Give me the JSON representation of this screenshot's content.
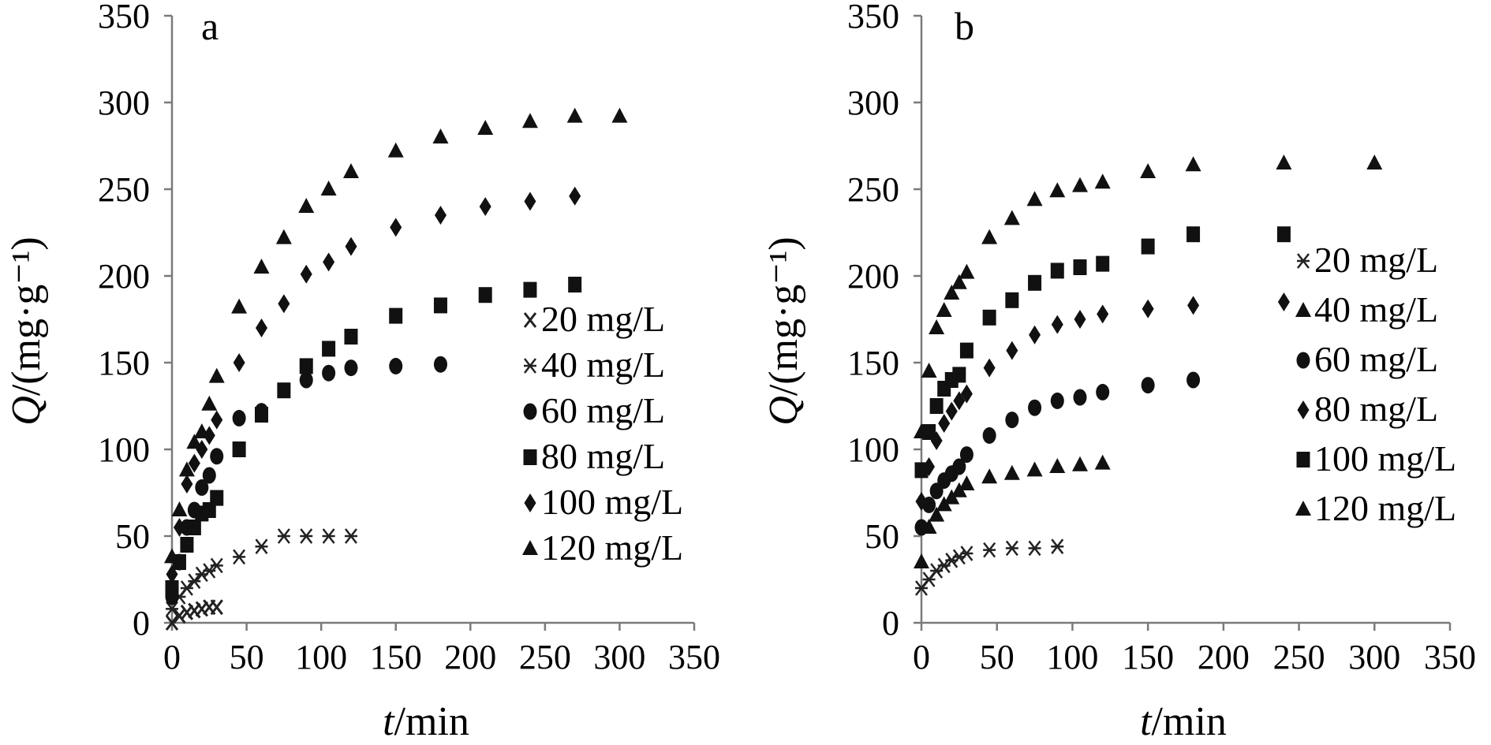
{
  "chart_data": [
    {
      "type": "scatter",
      "panel_label": "a",
      "xlabel": "t/min",
      "ylabel": "Q/(mg·g⁻¹)",
      "xlim": [
        0,
        350
      ],
      "ylim": [
        0,
        350
      ],
      "xticks": [
        0,
        50,
        100,
        150,
        200,
        250,
        300,
        350
      ],
      "yticks": [
        0,
        50,
        100,
        150,
        200,
        250,
        300,
        350
      ],
      "legend_position": "right-center",
      "series": [
        {
          "name": "20 mg/L",
          "marker": "x",
          "x": [
            0,
            5,
            10,
            15,
            20,
            25,
            30
          ],
          "y": [
            0,
            4,
            6,
            7,
            8,
            9,
            9
          ]
        },
        {
          "name": "40 mg/L",
          "marker": "asterisk",
          "x": [
            0,
            5,
            10,
            15,
            20,
            25,
            30,
            45,
            60,
            75,
            90,
            105,
            120
          ],
          "y": [
            8,
            15,
            20,
            24,
            28,
            30,
            33,
            38,
            44,
            50,
            50,
            50,
            50
          ]
        },
        {
          "name": "60 mg/L",
          "marker": "circle",
          "x": [
            0,
            5,
            10,
            15,
            20,
            25,
            30,
            45,
            60,
            90,
            105,
            120,
            150,
            180
          ],
          "y": [
            15,
            35,
            55,
            65,
            78,
            85,
            96,
            118,
            122,
            140,
            144,
            147,
            148,
            149
          ]
        },
        {
          "name": "80 mg/L",
          "marker": "square",
          "x": [
            0,
            5,
            10,
            15,
            20,
            25,
            30,
            45,
            60,
            75,
            90,
            105,
            120,
            150,
            180,
            210,
            240,
            270
          ],
          "y": [
            20,
            35,
            45,
            55,
            63,
            65,
            72,
            100,
            120,
            134,
            148,
            158,
            165,
            177,
            183,
            189,
            192,
            195
          ]
        },
        {
          "name": "100 mg/L",
          "marker": "diamond",
          "x": [
            0,
            5,
            10,
            15,
            20,
            25,
            30,
            45,
            60,
            75,
            90,
            105,
            120,
            150,
            180,
            210,
            240,
            270
          ],
          "y": [
            28,
            55,
            80,
            92,
            100,
            108,
            117,
            150,
            170,
            184,
            201,
            208,
            217,
            228,
            235,
            240,
            243,
            246
          ]
        },
        {
          "name": "120 mg/L",
          "marker": "triangle",
          "x": [
            0,
            5,
            10,
            15,
            20,
            25,
            30,
            45,
            60,
            75,
            90,
            105,
            120,
            150,
            180,
            210,
            240,
            270,
            300
          ],
          "y": [
            38,
            65,
            88,
            104,
            110,
            126,
            142,
            182,
            205,
            222,
            240,
            250,
            260,
            272,
            280,
            285,
            289,
            292,
            292
          ]
        }
      ]
    },
    {
      "type": "scatter",
      "panel_label": "b",
      "xlabel": "t/min",
      "ylabel": "Q/(mg·g⁻¹)",
      "xlim": [
        0,
        350
      ],
      "ylim": [
        0,
        350
      ],
      "xticks": [
        0,
        50,
        100,
        150,
        200,
        250,
        300,
        350
      ],
      "yticks": [
        0,
        50,
        100,
        150,
        200,
        250,
        300,
        350
      ],
      "legend_position": "right-center",
      "series": [
        {
          "name": "20 mg/L",
          "marker": "asterisk",
          "x": [
            0,
            5,
            10,
            15,
            20,
            25,
            30,
            45,
            60,
            75,
            90
          ],
          "y": [
            20,
            25,
            30,
            33,
            36,
            38,
            40,
            42,
            43,
            43,
            44
          ]
        },
        {
          "name": "40 mg/L",
          "marker": "triangle",
          "x": [
            0,
            5,
            10,
            15,
            20,
            25,
            30,
            45,
            60,
            75,
            90,
            105,
            120
          ],
          "y": [
            35,
            55,
            62,
            68,
            72,
            76,
            80,
            84,
            86,
            88,
            90,
            91,
            92
          ]
        },
        {
          "name": "60 mg/L",
          "marker": "circle",
          "x": [
            0,
            5,
            10,
            15,
            20,
            25,
            30,
            45,
            60,
            75,
            90,
            105,
            120,
            150,
            180
          ],
          "y": [
            55,
            68,
            76,
            82,
            86,
            90,
            97,
            108,
            117,
            124,
            128,
            130,
            133,
            137,
            140
          ]
        },
        {
          "name": "80 mg/L",
          "marker": "diamond",
          "x": [
            0,
            5,
            10,
            15,
            20,
            25,
            30,
            45,
            60,
            75,
            90,
            105,
            120,
            150,
            180,
            240
          ],
          "y": [
            70,
            90,
            105,
            115,
            122,
            128,
            132,
            147,
            157,
            166,
            172,
            175,
            178,
            181,
            183,
            185
          ]
        },
        {
          "name": "100 mg/L",
          "marker": "square",
          "x": [
            0,
            5,
            10,
            15,
            20,
            25,
            30,
            45,
            60,
            75,
            90,
            105,
            120,
            150,
            180,
            240
          ],
          "y": [
            88,
            110,
            125,
            135,
            140,
            143,
            157,
            176,
            186,
            196,
            203,
            205,
            207,
            217,
            224,
            224
          ]
        },
        {
          "name": "120 mg/L",
          "marker": "triangle",
          "x": [
            0,
            5,
            10,
            15,
            20,
            25,
            30,
            45,
            60,
            75,
            90,
            105,
            120,
            150,
            180,
            240,
            300
          ],
          "y": [
            110,
            145,
            170,
            180,
            190,
            196,
            202,
            222,
            233,
            244,
            249,
            252,
            254,
            260,
            264,
            265,
            265
          ]
        }
      ]
    }
  ]
}
